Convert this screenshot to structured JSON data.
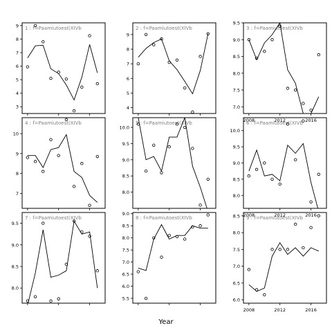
{
  "figure": {
    "xlabel": "Year"
  },
  "chart_data": [
    {
      "type": "line",
      "title": "1 : f=Paamiutoest(XIVb",
      "ylim": [
        2.5,
        9.2
      ],
      "yticks": [
        3,
        4,
        5,
        6,
        7,
        8,
        9
      ],
      "xlim": [
        2007.3,
        2018
      ],
      "xticks": [
        2008,
        2012,
        2016
      ],
      "show_xticklabels": false,
      "points": [
        {
          "x": 2008,
          "y": 5.95
        },
        {
          "x": 2009,
          "y": 9.0
        },
        {
          "x": 2010,
          "y": 7.8
        },
        {
          "x": 2011,
          "y": 5.1
        },
        {
          "x": 2012,
          "y": 5.55
        },
        {
          "x": 2013,
          "y": 5.05
        },
        {
          "x": 2014,
          "y": 2.7
        },
        {
          "x": 2015,
          "y": 4.45
        },
        {
          "x": 2016,
          "y": 8.25
        },
        {
          "x": 2017,
          "y": 4.7
        }
      ],
      "line": {
        "x": [
          2008,
          2009,
          2010,
          2011,
          2012,
          2013,
          2014,
          2015,
          2016,
          2017
        ],
        "y": [
          6.6,
          7.5,
          7.55,
          5.8,
          5.45,
          4.6,
          3.5,
          5.2,
          7.6,
          5.5
        ]
      }
    },
    {
      "type": "line",
      "title": "4 : f=Paamiutoest(XIVb",
      "ylim": [
        6.25,
        10.8
      ],
      "yticks": [
        7,
        8,
        9,
        10
      ],
      "xlim": [
        2007.3,
        2018
      ],
      "xticks": [
        2008,
        2012,
        2016
      ],
      "show_xticklabels": false,
      "points": [
        {
          "x": 2008,
          "y": 8.8
        },
        {
          "x": 2009,
          "y": 8.6
        },
        {
          "x": 2010,
          "y": 8.1
        },
        {
          "x": 2011,
          "y": 9.7
        },
        {
          "x": 2012,
          "y": 8.9
        },
        {
          "x": 2013,
          "y": 10.7
        },
        {
          "x": 2014,
          "y": 7.35
        },
        {
          "x": 2015,
          "y": 8.5
        },
        {
          "x": 2016,
          "y": 6.4
        },
        {
          "x": 2017,
          "y": 8.85
        }
      ],
      "line": {
        "x": [
          2008,
          2009,
          2010,
          2011,
          2012,
          2013,
          2014,
          2015,
          2016,
          2017
        ],
        "y": [
          8.9,
          8.9,
          8.3,
          9.2,
          9.3,
          9.95,
          8.1,
          7.8,
          6.9,
          6.55
        ]
      }
    },
    {
      "type": "line",
      "title": "7 : f=Paamiutoest(XIVb",
      "ylim": [
        7.65,
        9.75
      ],
      "yticks": [
        8.0,
        8.5,
        9.0,
        9.5
      ],
      "tick_decimals": 1,
      "xlim": [
        2007.3,
        2018
      ],
      "xticks": [
        2008,
        2012,
        2016
      ],
      "show_xticklabels": false,
      "points": [
        {
          "x": 2008,
          "y": 7.7
        },
        {
          "x": 2009,
          "y": 7.8
        },
        {
          "x": 2010,
          "y": 9.5
        },
        {
          "x": 2011,
          "y": 7.7
        },
        {
          "x": 2012,
          "y": 7.75
        },
        {
          "x": 2013,
          "y": 8.55
        },
        {
          "x": 2014,
          "y": 9.55
        },
        {
          "x": 2015,
          "y": 9.3
        },
        {
          "x": 2016,
          "y": 9.2
        },
        {
          "x": 2017,
          "y": 8.4
        }
      ],
      "line": {
        "x": [
          2008,
          2009,
          2010,
          2011,
          2012,
          2013,
          2014,
          2015,
          2016,
          2017
        ],
        "y": [
          7.6,
          8.35,
          9.35,
          8.25,
          8.3,
          8.4,
          9.55,
          9.25,
          9.3,
          8.0
        ]
      }
    },
    {
      "type": "line",
      "title": "2 : f=Paamiutoest(XIVb",
      "ylim": [
        3.6,
        9.8
      ],
      "yticks": [
        4,
        5,
        6,
        7,
        8,
        9
      ],
      "xlim": [
        2007.3,
        2018
      ],
      "xticks": [
        2008,
        2012,
        2016
      ],
      "show_xticklabels": false,
      "points": [
        {
          "x": 2008,
          "y": 7.0
        },
        {
          "x": 2009,
          "y": 9.0
        },
        {
          "x": 2010,
          "y": 8.3
        },
        {
          "x": 2011,
          "y": 8.7
        },
        {
          "x": 2012,
          "y": 7.1
        },
        {
          "x": 2013,
          "y": 7.25
        },
        {
          "x": 2014,
          "y": 5.35
        },
        {
          "x": 2015,
          "y": 3.7
        },
        {
          "x": 2016,
          "y": 7.5
        },
        {
          "x": 2017,
          "y": 9.05
        }
      ],
      "line": {
        "x": [
          2008,
          2009,
          2010,
          2011,
          2012,
          2013,
          2014,
          2015,
          2016,
          2017
        ],
        "y": [
          7.45,
          8.05,
          8.45,
          8.7,
          7.2,
          6.6,
          5.8,
          4.95,
          6.55,
          9.05
        ]
      }
    },
    {
      "type": "line",
      "title": "5 : f=Paamiutoest(XIVb",
      "ylim": [
        7.5,
        10.3
      ],
      "yticks": [
        8.0,
        8.5,
        9.0,
        9.5,
        10.0
      ],
      "tick_decimals": 1,
      "xlim": [
        2007.3,
        2018
      ],
      "xticks": [
        2008,
        2012,
        2016
      ],
      "show_xticklabels": false,
      "points": [
        {
          "x": 2008,
          "y": 10.1
        },
        {
          "x": 2009,
          "y": 8.65
        },
        {
          "x": 2010,
          "y": 9.45
        },
        {
          "x": 2011,
          "y": 8.6
        },
        {
          "x": 2012,
          "y": 9.4
        },
        {
          "x": 2013,
          "y": 10.1
        },
        {
          "x": 2014,
          "y": 10.0
        },
        {
          "x": 2015,
          "y": 9.35
        },
        {
          "x": 2016,
          "y": 7.6
        },
        {
          "x": 2017,
          "y": 8.4
        }
      ],
      "line": {
        "x": [
          2008,
          2009,
          2010,
          2011,
          2012,
          2013,
          2014,
          2015,
          2016,
          2017
        ],
        "y": [
          10.3,
          9.0,
          9.1,
          8.65,
          9.7,
          9.7,
          10.3,
          8.8,
          8.15,
          7.4
        ]
      }
    },
    {
      "type": "line",
      "title": "8 : f=Paamiutoest(XIVb",
      "ylim": [
        5.3,
        9.05
      ],
      "yticks": [
        5.5,
        6.0,
        6.5,
        7.0,
        7.5,
        8.0,
        8.5,
        9.0
      ],
      "tick_decimals": 1,
      "xlim": [
        2007.3,
        2018
      ],
      "xticks": [
        2008,
        2012,
        2016
      ],
      "show_xticklabels": false,
      "points": [
        {
          "x": 2008,
          "y": 6.6
        },
        {
          "x": 2009,
          "y": 5.5
        },
        {
          "x": 2010,
          "y": 8.0
        },
        {
          "x": 2011,
          "y": 7.2
        },
        {
          "x": 2012,
          "y": 8.1
        },
        {
          "x": 2013,
          "y": 8.05
        },
        {
          "x": 2014,
          "y": 7.95
        },
        {
          "x": 2015,
          "y": 8.45
        },
        {
          "x": 2016,
          "y": 8.5
        },
        {
          "x": 2017,
          "y": 8.95
        }
      ],
      "line": {
        "x": [
          2008,
          2009,
          2010,
          2011,
          2012,
          2013,
          2014,
          2015,
          2016,
          2017
        ],
        "y": [
          6.75,
          6.65,
          7.95,
          8.55,
          7.95,
          8.1,
          8.1,
          8.5,
          8.4,
          8.4
        ]
      }
    },
    {
      "type": "line",
      "title": "3 : f=Paamiutoest(XIVb",
      "ylim": [
        6.8,
        9.5
      ],
      "yticks": [
        7.0,
        7.5,
        8.0,
        8.5,
        9.0,
        9.5
      ],
      "tick_decimals": 1,
      "xlim": [
        2007.3,
        2018
      ],
      "xticks": [
        2008,
        2012,
        2016
      ],
      "show_xticklabels": true,
      "points": [
        {
          "x": 2008,
          "y": 9.0
        },
        {
          "x": 2009,
          "y": 8.45
        },
        {
          "x": 2010,
          "y": 8.65
        },
        {
          "x": 2011,
          "y": 9.0
        },
        {
          "x": 2012,
          "y": 9.4
        },
        {
          "x": 2013,
          "y": 7.55
        },
        {
          "x": 2014,
          "y": 7.5
        },
        {
          "x": 2015,
          "y": 7.1
        },
        {
          "x": 2016,
          "y": 6.9
        },
        {
          "x": 2017,
          "y": 8.55
        }
      ],
      "line": {
        "x": [
          2008,
          2009,
          2010,
          2011,
          2012,
          2013,
          2014,
          2015,
          2016,
          2017
        ],
        "y": [
          9.0,
          8.4,
          8.9,
          9.15,
          9.5,
          8.1,
          7.7,
          6.8,
          6.8,
          7.3
        ]
      }
    },
    {
      "type": "line",
      "title": "6 : f=Paamiutoest(XIVb",
      "ylim": [
        7.6,
        10.4
      ],
      "yticks": [
        8.0,
        8.5,
        9.0,
        9.5,
        10.0
      ],
      "tick_decimals": 1,
      "xlim": [
        2007.3,
        2018
      ],
      "xticks": [
        2008,
        2012,
        2016
      ],
      "show_xticklabels": true,
      "points": [
        {
          "x": 2008,
          "y": 8.6
        },
        {
          "x": 2009,
          "y": 8.8
        },
        {
          "x": 2010,
          "y": 9.0
        },
        {
          "x": 2011,
          "y": 8.5
        },
        {
          "x": 2012,
          "y": 8.35
        },
        {
          "x": 2013,
          "y": 10.2
        },
        {
          "x": 2014,
          "y": 9.1
        },
        {
          "x": 2015,
          "y": 10.3
        },
        {
          "x": 2016,
          "y": 7.8
        },
        {
          "x": 2017,
          "y": 8.65
        }
      ],
      "line": {
        "x": [
          2008,
          2009,
          2010,
          2011,
          2012,
          2013,
          2014,
          2015,
          2016,
          2017
        ],
        "y": [
          8.75,
          9.4,
          8.6,
          8.65,
          8.45,
          9.55,
          9.3,
          9.6,
          8.4,
          7.5
        ]
      }
    },
    {
      "type": "line",
      "title": "9 : f=Paamiutoest(XIVb",
      "ylim": [
        5.9,
        8.6
      ],
      "yticks": [
        6.0,
        6.5,
        7.0,
        7.5,
        8.0,
        8.5
      ],
      "tick_decimals": 1,
      "xlim": [
        2007.3,
        2018
      ],
      "xticks": [
        2008,
        2012,
        2016
      ],
      "show_xticklabels": true,
      "points": [
        {
          "x": 2008,
          "y": 6.9
        },
        {
          "x": 2009,
          "y": 6.3
        },
        {
          "x": 2010,
          "y": 6.15
        },
        {
          "x": 2011,
          "y": 7.5
        },
        {
          "x": 2012,
          "y": 7.5
        },
        {
          "x": 2013,
          "y": 7.5
        },
        {
          "x": 2014,
          "y": 8.25
        },
        {
          "x": 2015,
          "y": 7.55
        },
        {
          "x": 2016,
          "y": 8.15
        },
        {
          "x": 2017,
          "y": 8.5
        }
      ],
      "line": {
        "x": [
          2008,
          2009,
          2010,
          2011,
          2012,
          2013,
          2014,
          2015,
          2016,
          2017
        ],
        "y": [
          6.45,
          6.25,
          6.35,
          7.3,
          7.7,
          7.35,
          7.55,
          7.3,
          7.55,
          7.45
        ]
      }
    }
  ]
}
